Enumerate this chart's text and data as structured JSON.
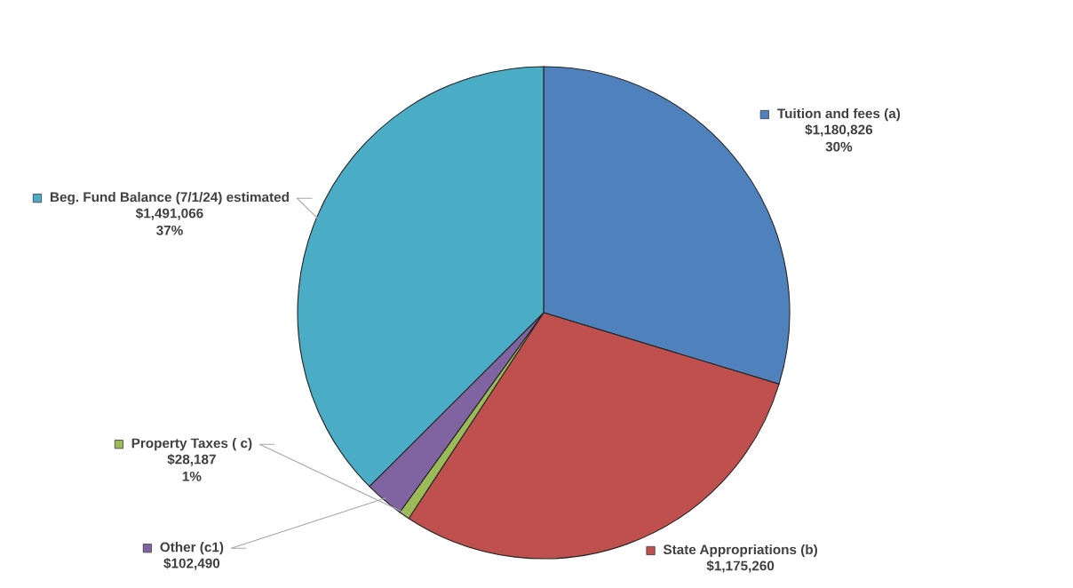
{
  "chart_data": {
    "type": "pie",
    "categories": [
      "Tuition and fees (a)",
      "State Appropriations (b)",
      "Property Taxes ( c)",
      "Other (c1)",
      "Beg. Fund Balance (7/1/24) estimated"
    ],
    "values": [
      1180826,
      1175260,
      28187,
      102490,
      1491066
    ],
    "colors": [
      "#4f81bd",
      "#c0504d",
      "#9bbb59",
      "#8064a2",
      "#4bacc6"
    ],
    "legend": "left",
    "value_labels": [
      "$1,180,826\n30%",
      "$1,175,260",
      "$28,187\n1%",
      "$102,490",
      "$1,491,066\n37%"
    ]
  }
}
